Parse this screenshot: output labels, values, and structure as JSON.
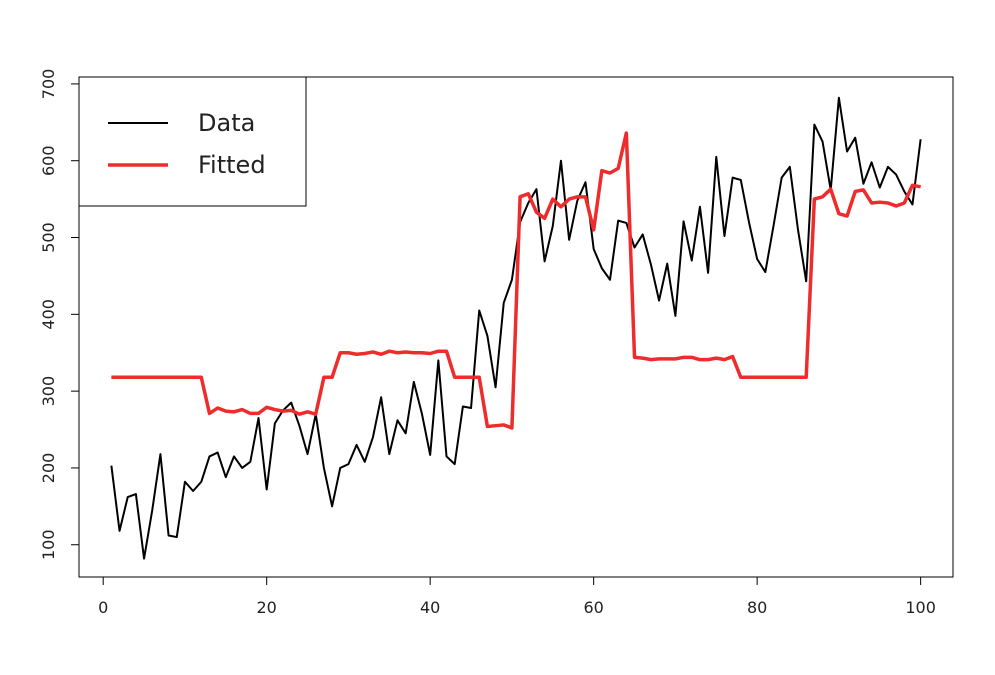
{
  "chart_data": {
    "type": "line",
    "x": [
      1,
      2,
      3,
      4,
      5,
      6,
      7,
      8,
      9,
      10,
      11,
      12,
      13,
      14,
      15,
      16,
      17,
      18,
      19,
      20,
      21,
      22,
      23,
      24,
      25,
      26,
      27,
      28,
      29,
      30,
      31,
      32,
      33,
      34,
      35,
      36,
      37,
      38,
      39,
      40,
      41,
      42,
      43,
      44,
      45,
      46,
      47,
      48,
      49,
      50,
      51,
      52,
      53,
      54,
      55,
      56,
      57,
      58,
      59,
      60,
      61,
      62,
      63,
      64,
      65,
      66,
      67,
      68,
      69,
      70,
      71,
      72,
      73,
      74,
      75,
      76,
      77,
      78,
      79,
      80,
      81,
      82,
      83,
      84,
      85,
      86,
      87,
      88,
      89,
      90,
      91,
      92,
      93,
      94,
      95,
      96,
      97,
      98,
      99,
      100
    ],
    "series": [
      {
        "name": "Data",
        "color": "#000000",
        "values": [
          203,
          118,
          162,
          166,
          82,
          145,
          218,
          112,
          110,
          182,
          170,
          182,
          215,
          220,
          188,
          215,
          200,
          208,
          265,
          172,
          258,
          275,
          285,
          255,
          218,
          270,
          200,
          150,
          200,
          205,
          230,
          208,
          240,
          292,
          218,
          262,
          245,
          312,
          270,
          217,
          340,
          215,
          205,
          280,
          278,
          405,
          372,
          305,
          415,
          445,
          520,
          545,
          563,
          469,
          515,
          600,
          497,
          548,
          572,
          485,
          460,
          445,
          522,
          519,
          487,
          504,
          465,
          418,
          466,
          398,
          521,
          470,
          540,
          454,
          605,
          502,
          578,
          575,
          520,
          472,
          455,
          515,
          578,
          592,
          510,
          443,
          647,
          625,
          562,
          682,
          612,
          630,
          570,
          598,
          565,
          592,
          582,
          560,
          543,
          628
        ]
      },
      {
        "name": "Fitted",
        "color": "#ee2c2c",
        "values": [
          318,
          318,
          318,
          318,
          318,
          318,
          318,
          318,
          318,
          318,
          318,
          318,
          271,
          278,
          274,
          273,
          276,
          271,
          271,
          279,
          276,
          274,
          275,
          270,
          273,
          270,
          318,
          318,
          350,
          350,
          348,
          349,
          351,
          348,
          352,
          350,
          351,
          350,
          350,
          349,
          352,
          352,
          318,
          318,
          318,
          318,
          254,
          255,
          256,
          252,
          553,
          557,
          533,
          525,
          550,
          540,
          550,
          553,
          553,
          510,
          587,
          584,
          590,
          636,
          344,
          343,
          341,
          342,
          342,
          342,
          344,
          344,
          341,
          341,
          343,
          341,
          345,
          318,
          318,
          318,
          318,
          318,
          318,
          318,
          318,
          318,
          550,
          553,
          563,
          531,
          528,
          560,
          562,
          545,
          546,
          545,
          541,
          545,
          568,
          566
        ]
      }
    ],
    "xlim": [
      -2.96,
      103.96
    ],
    "xticks": [
      0,
      20,
      40,
      60,
      80,
      100
    ],
    "ylim": [
      58,
      709
    ],
    "yticks": [
      100,
      200,
      300,
      400,
      500,
      600,
      700
    ],
    "legend": "top-left"
  }
}
